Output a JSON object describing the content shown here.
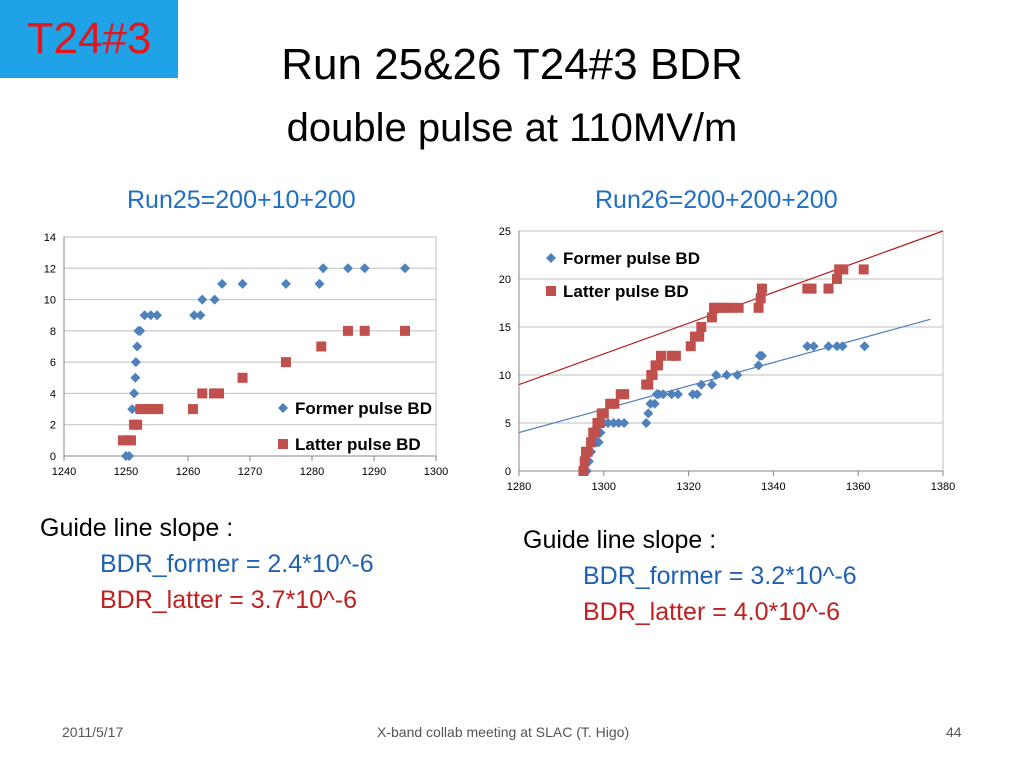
{
  "tag": "T24#3",
  "title_line1": "Run 25&26   T24#3 BDR",
  "title_line2": "double pulse  at 110MV/m",
  "colors": {
    "former": "#4f81bd",
    "latter": "#c0504d",
    "former_text": "#1f62b3",
    "latter_text": "#c0201f",
    "tag_bg": "#1fa3e6",
    "tag_text": "#e8141b"
  },
  "chart_data": [
    {
      "type": "scatter",
      "title": "Run25=200+10+200",
      "xlim": [
        1240,
        1300
      ],
      "ylim": [
        0,
        14
      ],
      "xticks": [
        "1240",
        "1250",
        "1260",
        "1270",
        "1280",
        "1290",
        "1300"
      ],
      "yticks": [
        "0",
        "2",
        "4",
        "6",
        "8",
        "10",
        "12",
        "14"
      ],
      "legend_position": "bottom-right",
      "grid": true,
      "series": [
        {
          "name": "Former pulse BD",
          "marker": "diamond",
          "x": [
            1250,
            1250.5,
            1251,
            1251.3,
            1251.5,
            1251.6,
            1251.8,
            1252,
            1252.3,
            1253,
            1254,
            1255,
            1261,
            1262,
            1262.3,
            1264.3,
            1265.5,
            1268.8,
            1275.8,
            1281.2,
            1281.8,
            1285.8,
            1288.5,
            1295
          ],
          "y": [
            0,
            0,
            3,
            4,
            5,
            6,
            7,
            8,
            8,
            9,
            9,
            9,
            9,
            9,
            10,
            10,
            11,
            11,
            11,
            11,
            12,
            12,
            12,
            12
          ]
        },
        {
          "name": "Latter pulse BD",
          "marker": "square",
          "x": [
            1249.5,
            1250.3,
            1250.8,
            1251.3,
            1251.8,
            1252.3,
            1253,
            1253.8,
            1254.5,
            1255.2,
            1260.8,
            1262.3,
            1264.2,
            1265,
            1268.8,
            1275.8,
            1281.5,
            1285.8,
            1288.5,
            1295
          ],
          "y": [
            1,
            1,
            1,
            2,
            2,
            3,
            3,
            3,
            3,
            3,
            3,
            4,
            4,
            4,
            5,
            6,
            7,
            8,
            8,
            8
          ]
        }
      ]
    },
    {
      "type": "scatter",
      "title": "Run26=200+200+200",
      "xlim": [
        1280,
        1380
      ],
      "ylim": [
        0,
        25
      ],
      "xticks": [
        "1280",
        "1300",
        "1320",
        "1340",
        "1360",
        "1380"
      ],
      "yticks": [
        "0",
        "5",
        "10",
        "15",
        "20",
        "25"
      ],
      "legend_position": "top-left",
      "grid": true,
      "series": [
        {
          "name": "Former pulse BD",
          "marker": "diamond",
          "x": [
            1296,
            1296.5,
            1297,
            1297.3,
            1297.6,
            1298,
            1298.3,
            1298.8,
            1299.2,
            1300,
            1301,
            1302.3,
            1303.5,
            1304.8,
            1310,
            1310.5,
            1311,
            1312,
            1312.5,
            1313,
            1314,
            1316,
            1317.5,
            1321,
            1322,
            1323,
            1325.5,
            1326.5,
            1329,
            1331.5,
            1336.5,
            1336.8,
            1337.3,
            1348,
            1349.5,
            1353,
            1355,
            1356.3,
            1361.5
          ],
          "y": [
            0,
            1,
            2,
            3,
            3,
            4,
            3,
            3,
            4,
            5,
            5,
            5,
            5,
            5,
            5,
            6,
            7,
            7,
            8,
            8,
            8,
            8,
            8,
            8,
            8,
            9,
            9,
            10,
            10,
            10,
            11,
            12,
            12,
            13,
            13,
            13,
            13,
            13,
            13
          ]
        },
        {
          "name": "Latter pulse BD",
          "marker": "square",
          "x": [
            1295.2,
            1295.5,
            1295.8,
            1296.2,
            1297,
            1297.5,
            1298,
            1298.5,
            1299,
            1299.5,
            1300,
            1301.5,
            1302.5,
            1304,
            1304.8,
            1310,
            1310.5,
            1311.2,
            1311.5,
            1312.2,
            1312.8,
            1313.5,
            1316,
            1317,
            1320.5,
            1321.5,
            1322.5,
            1323,
            1325.5,
            1326,
            1326.5,
            1328.5,
            1329.5,
            1331.8,
            1336.5,
            1337,
            1337.3,
            1348,
            1349,
            1353,
            1355,
            1355.5,
            1356.5,
            1361.3
          ],
          "y": [
            0,
            1,
            2,
            2,
            3,
            4,
            4,
            5,
            5,
            6,
            6,
            7,
            7,
            8,
            8,
            9,
            9,
            10,
            10,
            11,
            11,
            12,
            12,
            12,
            13,
            14,
            14,
            15,
            16,
            17,
            17,
            17,
            17,
            17,
            17,
            18,
            19,
            19,
            19,
            19,
            20,
            21,
            21,
            21
          ]
        }
      ],
      "guide_lines": [
        {
          "series": "Former pulse BD",
          "from": [
            1280,
            4
          ],
          "to": [
            1377,
            15.8
          ]
        },
        {
          "series": "Latter pulse BD",
          "from": [
            1280,
            9
          ],
          "to": [
            1380,
            25
          ]
        }
      ]
    }
  ],
  "guide_run25": {
    "heading": "Guide line slope :",
    "former": "BDR_former = 2.4*10^-6",
    "latter": "BDR_latter = 3.7*10^-6"
  },
  "guide_run26": {
    "heading": "Guide line slope :",
    "former": "BDR_former = 3.2*10^-6",
    "latter": "BDR_latter = 4.0*10^-6"
  },
  "footer": {
    "date": "2011/5/17",
    "event": "X-band collab meeting at SLAC (T. Higo)",
    "page": "44"
  }
}
